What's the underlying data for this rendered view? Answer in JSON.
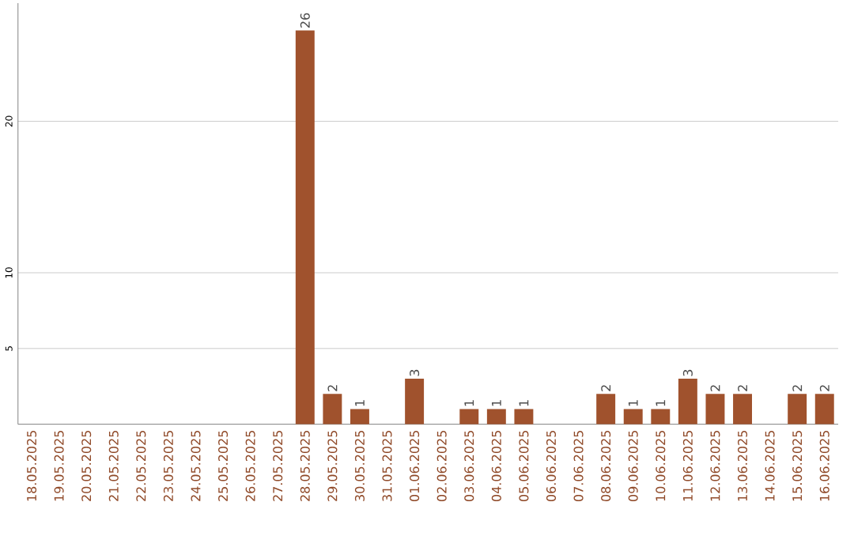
{
  "chart_data": {
    "type": "bar",
    "categories": [
      "18.05.2025",
      "19.05.2025",
      "20.05.2025",
      "21.05.2025",
      "22.05.2025",
      "23.05.2025",
      "24.05.2025",
      "25.05.2025",
      "26.05.2025",
      "27.05.2025",
      "28.05.2025",
      "29.05.2025",
      "30.05.2025",
      "31.05.2025",
      "01.06.2025",
      "02.06.2025",
      "03.06.2025",
      "04.06.2025",
      "05.06.2025",
      "06.06.2025",
      "07.06.2025",
      "08.06.2025",
      "09.06.2025",
      "10.06.2025",
      "11.06.2025",
      "12.06.2025",
      "13.06.2025",
      "14.06.2025",
      "15.06.2025",
      "16.06.2025"
    ],
    "values": [
      0,
      0,
      0,
      0,
      0,
      0,
      0,
      0,
      0,
      0,
      26,
      2,
      1,
      0,
      3,
      0,
      1,
      1,
      1,
      0,
      0,
      2,
      1,
      1,
      3,
      2,
      2,
      0,
      2,
      2
    ],
    "value_labels": [
      null,
      null,
      null,
      null,
      null,
      null,
      null,
      null,
      null,
      null,
      "26",
      "2",
      "1",
      null,
      "3",
      null,
      "1",
      "1",
      "1",
      null,
      null,
      "2",
      "1",
      "1",
      "3",
      "2",
      "2",
      null,
      "2",
      "2"
    ],
    "color": "#a0522d",
    "ylim": [
      0,
      27.8
    ],
    "yticks": [
      5,
      10,
      20
    ],
    "grid": "y"
  }
}
